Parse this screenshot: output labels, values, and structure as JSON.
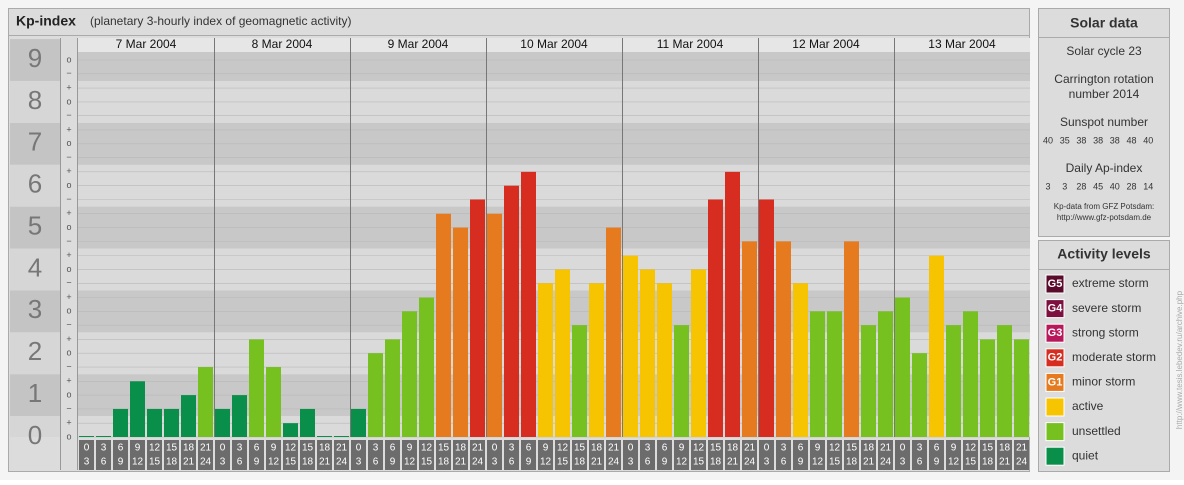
{
  "chart_data": {
    "type": "bar",
    "title": "Kp-index",
    "subtitle": "(planetary 3-hourly index of geomagnetic activity)",
    "ylim": [
      0,
      9
    ],
    "yticks": [
      0,
      1,
      2,
      3,
      4,
      5,
      6,
      7,
      8,
      9
    ],
    "minor_ticks": [
      {
        "value": 0,
        "label": "o"
      },
      {
        "value": 0.33,
        "label": "+"
      },
      {
        "value": 0.67,
        "label": "−"
      },
      {
        "value": 1,
        "label": "o"
      },
      {
        "value": 1.33,
        "label": "+"
      },
      {
        "value": 1.67,
        "label": "−"
      },
      {
        "value": 2,
        "label": "o"
      },
      {
        "value": 2.33,
        "label": "+"
      },
      {
        "value": 2.67,
        "label": "−"
      },
      {
        "value": 3,
        "label": "o"
      },
      {
        "value": 3.33,
        "label": "+"
      },
      {
        "value": 3.67,
        "label": "−"
      },
      {
        "value": 4,
        "label": "o"
      },
      {
        "value": 4.33,
        "label": "+"
      },
      {
        "value": 4.67,
        "label": "−"
      },
      {
        "value": 5,
        "label": "o"
      },
      {
        "value": 5.33,
        "label": "+"
      },
      {
        "value": 5.67,
        "label": "−"
      },
      {
        "value": 6,
        "label": "o"
      },
      {
        "value": 6.33,
        "label": "+"
      },
      {
        "value": 6.67,
        "label": "−"
      },
      {
        "value": 7,
        "label": "o"
      },
      {
        "value": 7.33,
        "label": "+"
      },
      {
        "value": 7.67,
        "label": "−"
      },
      {
        "value": 8,
        "label": "o"
      },
      {
        "value": 8.33,
        "label": "+"
      },
      {
        "value": 8.67,
        "label": "−"
      },
      {
        "value": 9,
        "label": "o"
      }
    ],
    "hour_labels": [
      [
        "0",
        "3"
      ],
      [
        "3",
        "6"
      ],
      [
        "6",
        "9"
      ],
      [
        "9",
        "12"
      ],
      [
        "12",
        "15"
      ],
      [
        "15",
        "18"
      ],
      [
        "18",
        "21"
      ],
      [
        "21",
        "24"
      ]
    ],
    "days": [
      {
        "date": "7 Mar 2004",
        "values": [
          0,
          0,
          0.67,
          1.33,
          0.67,
          0.67,
          1,
          1.67
        ],
        "colors": [
          "#0a8f4a",
          "#0a8f4a",
          "#0a8f4a",
          "#0a8f4a",
          "#0a8f4a",
          "#0a8f4a",
          "#0a8f4a",
          "#76c020"
        ]
      },
      {
        "date": "8 Mar 2004",
        "values": [
          0.67,
          1,
          2.33,
          1.67,
          0.33,
          0.67,
          0,
          0
        ],
        "colors": [
          "#0a8f4a",
          "#0a8f4a",
          "#76c020",
          "#76c020",
          "#0a8f4a",
          "#0a8f4a",
          "#0a8f4a",
          "#0a8f4a"
        ]
      },
      {
        "date": "9 Mar 2004",
        "values": [
          0.67,
          2,
          2.33,
          3,
          3.33,
          5.33,
          5,
          5.67
        ],
        "colors": [
          "#0a8f4a",
          "#76c020",
          "#76c020",
          "#76c020",
          "#76c020",
          "#e57b1e",
          "#e57b1e",
          "#d62d20"
        ]
      },
      {
        "date": "10 Mar 2004",
        "values": [
          5.33,
          6,
          6.33,
          3.67,
          4,
          2.67,
          3.67,
          5
        ],
        "colors": [
          "#e57b1e",
          "#d62d20",
          "#d62d20",
          "#f6c400",
          "#f6c400",
          "#76c020",
          "#f6c400",
          "#e57b1e"
        ]
      },
      {
        "date": "11 Mar 2004",
        "values": [
          4.33,
          4,
          3.67,
          2.67,
          4,
          5.67,
          6.33,
          4.67
        ],
        "colors": [
          "#f6c400",
          "#f6c400",
          "#f6c400",
          "#76c020",
          "#f6c400",
          "#d62d20",
          "#d62d20",
          "#e57b1e"
        ]
      },
      {
        "date": "12 Mar 2004",
        "values": [
          5.67,
          4.67,
          3.67,
          3,
          3,
          4.67,
          2.67,
          3
        ],
        "colors": [
          "#d62d20",
          "#e57b1e",
          "#f6c400",
          "#76c020",
          "#76c020",
          "#e57b1e",
          "#76c020",
          "#76c020"
        ]
      },
      {
        "date": "13 Mar 2004",
        "values": [
          3.33,
          2,
          4.33,
          2.67,
          3,
          2.33,
          2.67,
          2.33
        ],
        "colors": [
          "#76c020",
          "#76c020",
          "#f6c400",
          "#76c020",
          "#76c020",
          "#76c020",
          "#76c020",
          "#76c020"
        ]
      }
    ]
  },
  "solar_panel": {
    "title": "Solar data",
    "cycle": "Solar cycle 23",
    "carrington": [
      "Carrington rotation",
      "number 2014"
    ],
    "sunspot_title": "Sunspot number",
    "sunspot_values": [
      "40",
      "35",
      "38",
      "38",
      "38",
      "48",
      "40"
    ],
    "ap_title": "Daily Ap-index",
    "ap_values": [
      "3",
      "3",
      "28",
      "45",
      "40",
      "28",
      "14"
    ],
    "source": "Kp-data from GFZ Potsdam:",
    "source_url": "http://www.gfz-potsdam.de"
  },
  "activity_panel": {
    "title": "Activity levels",
    "levels": [
      {
        "code": "G5",
        "label": "extreme storm",
        "color": "#5a0a2a"
      },
      {
        "code": "G4",
        "label": "severe storm",
        "color": "#7e1040"
      },
      {
        "code": "G3",
        "label": "strong storm",
        "color": "#b8185a"
      },
      {
        "code": "G2",
        "label": "moderate storm",
        "color": "#d62d20"
      },
      {
        "code": "G1",
        "label": "minor storm",
        "color": "#e57b1e"
      },
      {
        "label": "active",
        "color": "#f6c400"
      },
      {
        "label": "unsettled",
        "color": "#76c020"
      },
      {
        "label": "quiet",
        "color": "#0a8f4a"
      }
    ]
  },
  "watermark": "http://www.tesis.lebedev.ru/archive.php"
}
